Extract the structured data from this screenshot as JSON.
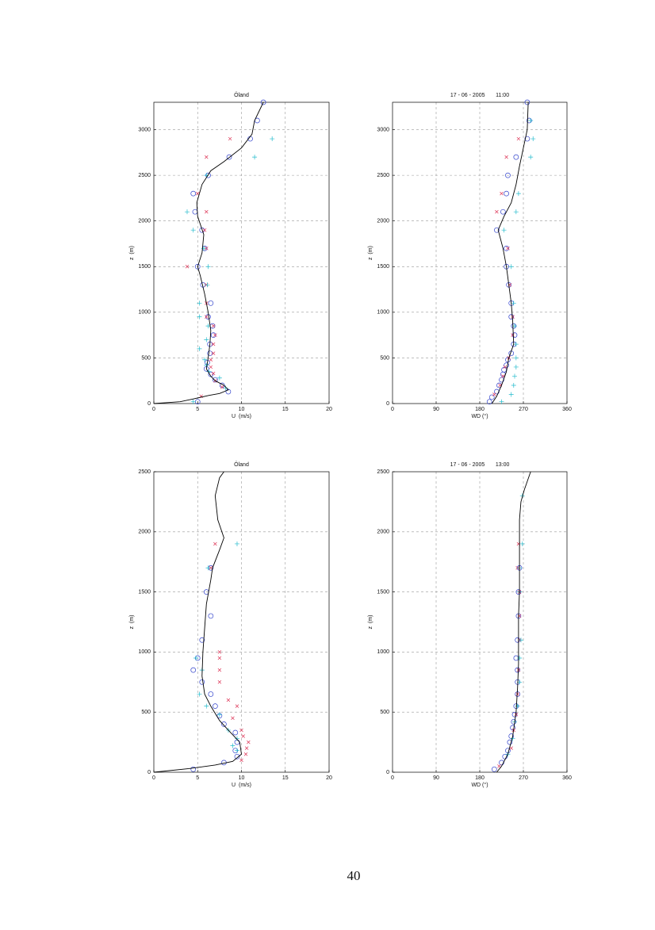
{
  "chart_data": [
    {
      "type": "line",
      "title": "Öland",
      "xlabel": "U  (m/s)",
      "ylabel": "z  (m)",
      "xlim": [
        0,
        20
      ],
      "ylim": [
        0,
        3300
      ],
      "xticks": [
        0,
        5,
        10,
        15,
        20
      ],
      "yticks": [
        0,
        500,
        1000,
        1500,
        2000,
        2500,
        3000
      ],
      "grid": true,
      "series": [
        {
          "marker": "o",
          "color": "#3344cc",
          "x": [
            12.5,
            11.8,
            11,
            8.6,
            6.2,
            4.5,
            4.7,
            5.5,
            5.8,
            5,
            5.6,
            6.5,
            6.2,
            6.7,
            6.8,
            6.4,
            6.4,
            6.1,
            6,
            6.5,
            7,
            7.8,
            8.5,
            5
          ],
          "y": [
            3300,
            3100,
            2900,
            2700,
            2500,
            2300,
            2100,
            1900,
            1700,
            1500,
            1300,
            1100,
            950,
            850,
            750,
            650,
            550,
            450,
            380,
            320,
            260,
            200,
            130,
            20
          ]
        },
        {
          "marker": "x",
          "color": "#dd3355",
          "x": [
            8.7,
            6,
            5,
            6,
            5.8,
            6,
            3.8,
            6,
            6,
            6,
            6.8,
            7,
            6.8,
            6.8,
            6.5,
            6.5,
            6.8,
            7,
            7.8,
            5.4
          ],
          "y": [
            2900,
            2700,
            2300,
            2100,
            1900,
            1700,
            1500,
            1300,
            1100,
            950,
            850,
            750,
            650,
            550,
            480,
            400,
            330,
            250,
            180,
            80
          ]
        },
        {
          "marker": "+",
          "color": "#22bbcc",
          "x": [
            13.5,
            11.5,
            6,
            3.8,
            4.5,
            5.7,
            6.2,
            6.1,
            5.2,
            5.2,
            6.2,
            6,
            5.2,
            5.8,
            6,
            6.3,
            7.5,
            8.2,
            4.5
          ],
          "y": [
            2900,
            2700,
            2500,
            2100,
            1900,
            1700,
            1500,
            1300,
            1100,
            950,
            850,
            700,
            600,
            480,
            420,
            350,
            280,
            170,
            20
          ]
        },
        {
          "marker": "-",
          "color": "#000000",
          "x": [
            0,
            3,
            4.5,
            6.3,
            7.5,
            8.5,
            8,
            7,
            6.5,
            6,
            6.2,
            6.4,
            6.5,
            6.2,
            5.8,
            5.3,
            5,
            5.5,
            5.7,
            5,
            4.9,
            5.5,
            6.5,
            8,
            10,
            11.2,
            11.5,
            12.5
          ],
          "y": [
            0,
            20,
            50,
            90,
            110,
            150,
            200,
            250,
            300,
            380,
            500,
            650,
            800,
            1000,
            1200,
            1400,
            1500,
            1650,
            1850,
            2050,
            2200,
            2400,
            2550,
            2650,
            2800,
            2950,
            3100,
            3300
          ]
        }
      ]
    },
    {
      "type": "line",
      "title": "17 - 06 - 2005       11:00",
      "xlabel": "WD (°)",
      "ylabel": "z  (m)",
      "xlim": [
        0,
        360
      ],
      "ylim": [
        0,
        3300
      ],
      "xticks": [
        0,
        90,
        180,
        270,
        360
      ],
      "yticks": [
        0,
        500,
        1000,
        1500,
        2000,
        2500,
        3000
      ],
      "grid": true,
      "series": [
        {
          "marker": "o",
          "color": "#3344cc",
          "x": [
            278,
            282,
            278,
            255,
            238,
            235,
            228,
            215,
            235,
            235,
            240,
            245,
            245,
            250,
            252,
            250,
            245,
            238,
            235,
            230,
            228,
            225,
            220,
            215,
            205,
            200
          ],
          "y": [
            3300,
            3100,
            2900,
            2700,
            2500,
            2300,
            2100,
            1900,
            1700,
            1500,
            1300,
            1100,
            950,
            850,
            750,
            650,
            550,
            480,
            420,
            370,
            320,
            260,
            200,
            130,
            70,
            20
          ]
        },
        {
          "marker": "x",
          "color": "#dd3355",
          "x": [
            260,
            235,
            225,
            215,
            238,
            242,
            248,
            248,
            240,
            232,
            228,
            222,
            210
          ],
          "y": [
            2900,
            2700,
            2300,
            2100,
            1700,
            1300,
            950,
            750,
            500,
            400,
            300,
            200,
            100
          ]
        },
        {
          "marker": "+",
          "color": "#22bbcc",
          "x": [
            285,
            290,
            285,
            260,
            255,
            230,
            245,
            250,
            252,
            255,
            255,
            255,
            252,
            250,
            245,
            225
          ],
          "y": [
            3100,
            2900,
            2700,
            2300,
            2100,
            1900,
            1500,
            1100,
            850,
            650,
            500,
            400,
            300,
            200,
            100,
            20
          ]
        },
        {
          "marker": "-",
          "color": "#000000",
          "x": [
            205,
            215,
            225,
            235,
            240,
            250,
            248,
            245,
            240,
            235,
            228,
            218,
            230,
            245,
            255,
            262,
            270,
            278,
            280
          ],
          "y": [
            0,
            80,
            200,
            350,
            500,
            650,
            900,
            1100,
            1300,
            1500,
            1700,
            1900,
            2050,
            2200,
            2400,
            2600,
            2800,
            3000,
            3300
          ]
        }
      ]
    },
    {
      "type": "line",
      "title": "Öland",
      "xlabel": "U  (m/s)",
      "ylabel": "z  (m)",
      "xlim": [
        0,
        20
      ],
      "ylim": [
        0,
        2500
      ],
      "xticks": [
        0,
        5,
        10,
        15,
        20
      ],
      "yticks": [
        0,
        500,
        1000,
        1500,
        2000,
        2500
      ],
      "grid": true,
      "series": [
        {
          "marker": "o",
          "color": "#3344cc",
          "x": [
            6.5,
            6,
            6.5,
            5.5,
            5,
            4.5,
            5.5,
            6.5,
            7,
            7.5,
            8,
            9.3,
            9.5,
            9.3,
            9.5,
            8,
            4.5
          ],
          "y": [
            1700,
            1500,
            1300,
            1100,
            950,
            850,
            750,
            650,
            550,
            470,
            400,
            330,
            250,
            180,
            130,
            80,
            25
          ]
        },
        {
          "marker": "x",
          "color": "#dd3355",
          "x": [
            7,
            6.5,
            7.5,
            7.5,
            7.5,
            7.5,
            8.5,
            9.5,
            9,
            10,
            10.2,
            10.8,
            10.6,
            10.5,
            10
          ],
          "y": [
            1900,
            1700,
            1000,
            950,
            850,
            750,
            600,
            550,
            450,
            350,
            300,
            250,
            200,
            150,
            100
          ]
        },
        {
          "marker": "+",
          "color": "#22bbcc",
          "x": [
            9.5,
            6.2,
            4.8,
            5.5,
            5.2,
            6,
            7.5,
            8.5,
            9.5,
            9,
            9.5
          ],
          "y": [
            1900,
            1700,
            950,
            850,
            650,
            550,
            480,
            350,
            280,
            220,
            180
          ]
        },
        {
          "marker": "-",
          "color": "#000000",
          "x": [
            0,
            4,
            7,
            9,
            10,
            9.8,
            8.5,
            7.5,
            6.5,
            5.8,
            5.5,
            5.6,
            5.8,
            6,
            6.5,
            6.7,
            7.5,
            8,
            7.3,
            7,
            7.5,
            8
          ],
          "y": [
            0,
            30,
            60,
            90,
            150,
            250,
            350,
            430,
            550,
            650,
            800,
            1000,
            1200,
            1400,
            1600,
            1700,
            1850,
            1950,
            2100,
            2300,
            2450,
            2500
          ]
        }
      ]
    },
    {
      "type": "line",
      "title": "17 - 06 - 2005       13:00",
      "xlabel": "WD (°)",
      "ylabel": "z  (m)",
      "xlim": [
        0,
        360
      ],
      "ylim": [
        0,
        2500
      ],
      "xticks": [
        0,
        90,
        180,
        270,
        360
      ],
      "yticks": [
        0,
        500,
        1000,
        1500,
        2000,
        2500
      ],
      "grid": true,
      "series": [
        {
          "marker": "o",
          "color": "#3344cc",
          "x": [
            262,
            260,
            260,
            258,
            255,
            258,
            258,
            258,
            255,
            252,
            250,
            248,
            245,
            242,
            238,
            232,
            225,
            210
          ],
          "y": [
            1700,
            1500,
            1300,
            1100,
            950,
            850,
            750,
            650,
            550,
            480,
            420,
            370,
            300,
            250,
            180,
            130,
            80,
            25
          ]
        },
        {
          "marker": "x",
          "color": "#dd3355",
          "x": [
            260,
            258,
            262,
            262,
            262,
            260,
            258,
            255,
            250,
            245,
            220
          ],
          "y": [
            1900,
            1700,
            1500,
            1300,
            1100,
            850,
            650,
            480,
            350,
            200,
            50
          ]
        },
        {
          "marker": "+",
          "color": "#22bbcc",
          "x": [
            268,
            268,
            262,
            262,
            265,
            262,
            262,
            258,
            252,
            248,
            238
          ],
          "y": [
            2300,
            1900,
            1700,
            1500,
            1100,
            950,
            750,
            550,
            420,
            280,
            150
          ]
        },
        {
          "marker": "-",
          "color": "#000000",
          "x": [
            215,
            225,
            238,
            248,
            255,
            258,
            260,
            260,
            260,
            262,
            262,
            262,
            262,
            265,
            272,
            285
          ],
          "y": [
            0,
            50,
            150,
            300,
            500,
            700,
            900,
            1100,
            1300,
            1500,
            1700,
            1900,
            2100,
            2250,
            2350,
            2500
          ]
        }
      ]
    }
  ],
  "page_number": "40"
}
